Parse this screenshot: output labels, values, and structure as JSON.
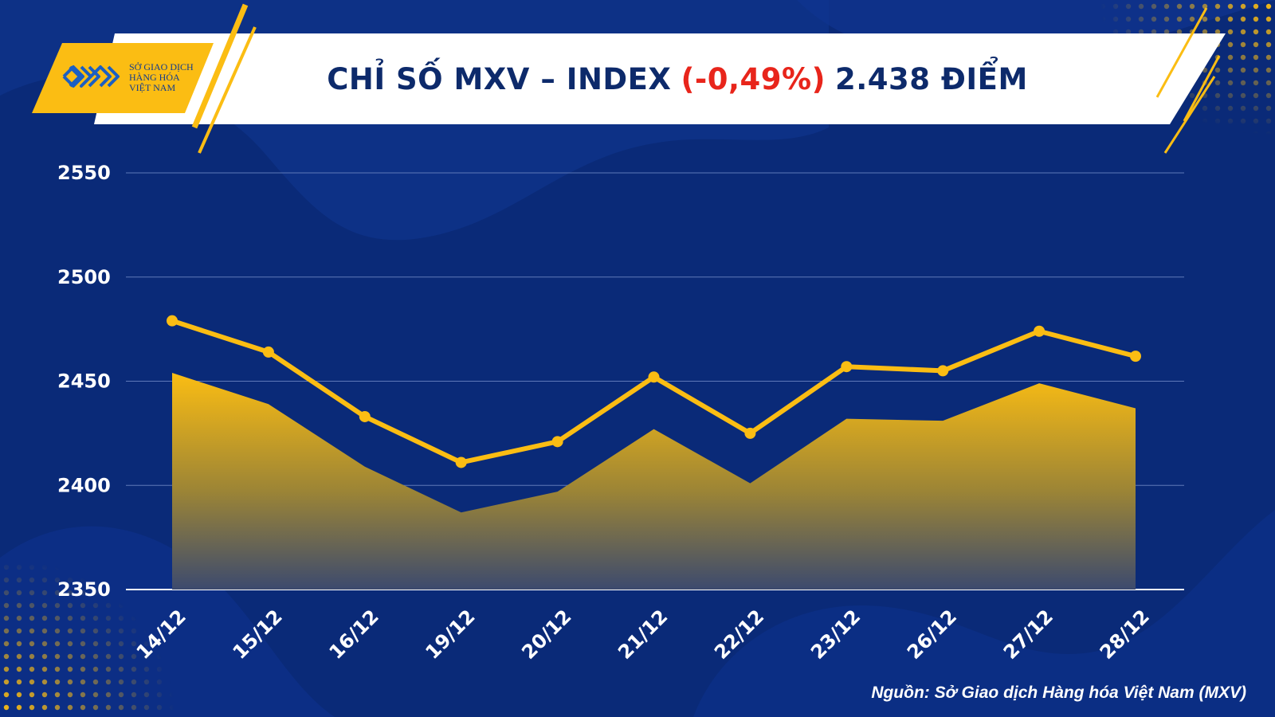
{
  "header": {
    "title_main": "CHỈ SỐ MXV – INDEX",
    "title_change": "(-0,49%)",
    "title_value": "2.438 ĐIỂM"
  },
  "logo": {
    "line1": "SỞ GIAO DỊCH",
    "line2": "HÀNG HÓA",
    "line3": "VIỆT NAM"
  },
  "source": "Nguồn: Sở Giao dịch Hàng hóa Việt Nam (MXV)",
  "colors": {
    "background": "#0a2a78",
    "accent": "#fbbd13",
    "change_negative": "#e8251b",
    "title_text": "#0d2a6b"
  },
  "chart_data": {
    "type": "line",
    "categories": [
      "14/12",
      "15/12",
      "16/12",
      "19/12",
      "20/12",
      "21/12",
      "22/12",
      "23/12",
      "26/12",
      "27/12",
      "28/12"
    ],
    "series": [
      {
        "values": [
          2479,
          2464,
          2433,
          2411,
          2421,
          2452,
          2425,
          2457,
          2455,
          2474,
          2462
        ]
      }
    ],
    "area_values": [
      2454,
      2439,
      2409,
      2387,
      2397,
      2427,
      2401,
      2432,
      2431,
      2449,
      2437
    ],
    "yticks": [
      2350,
      2400,
      2450,
      2500,
      2550
    ],
    "ylim": [
      2350,
      2550
    ],
    "grid": true,
    "area_fill": "gradient gold to dark"
  }
}
